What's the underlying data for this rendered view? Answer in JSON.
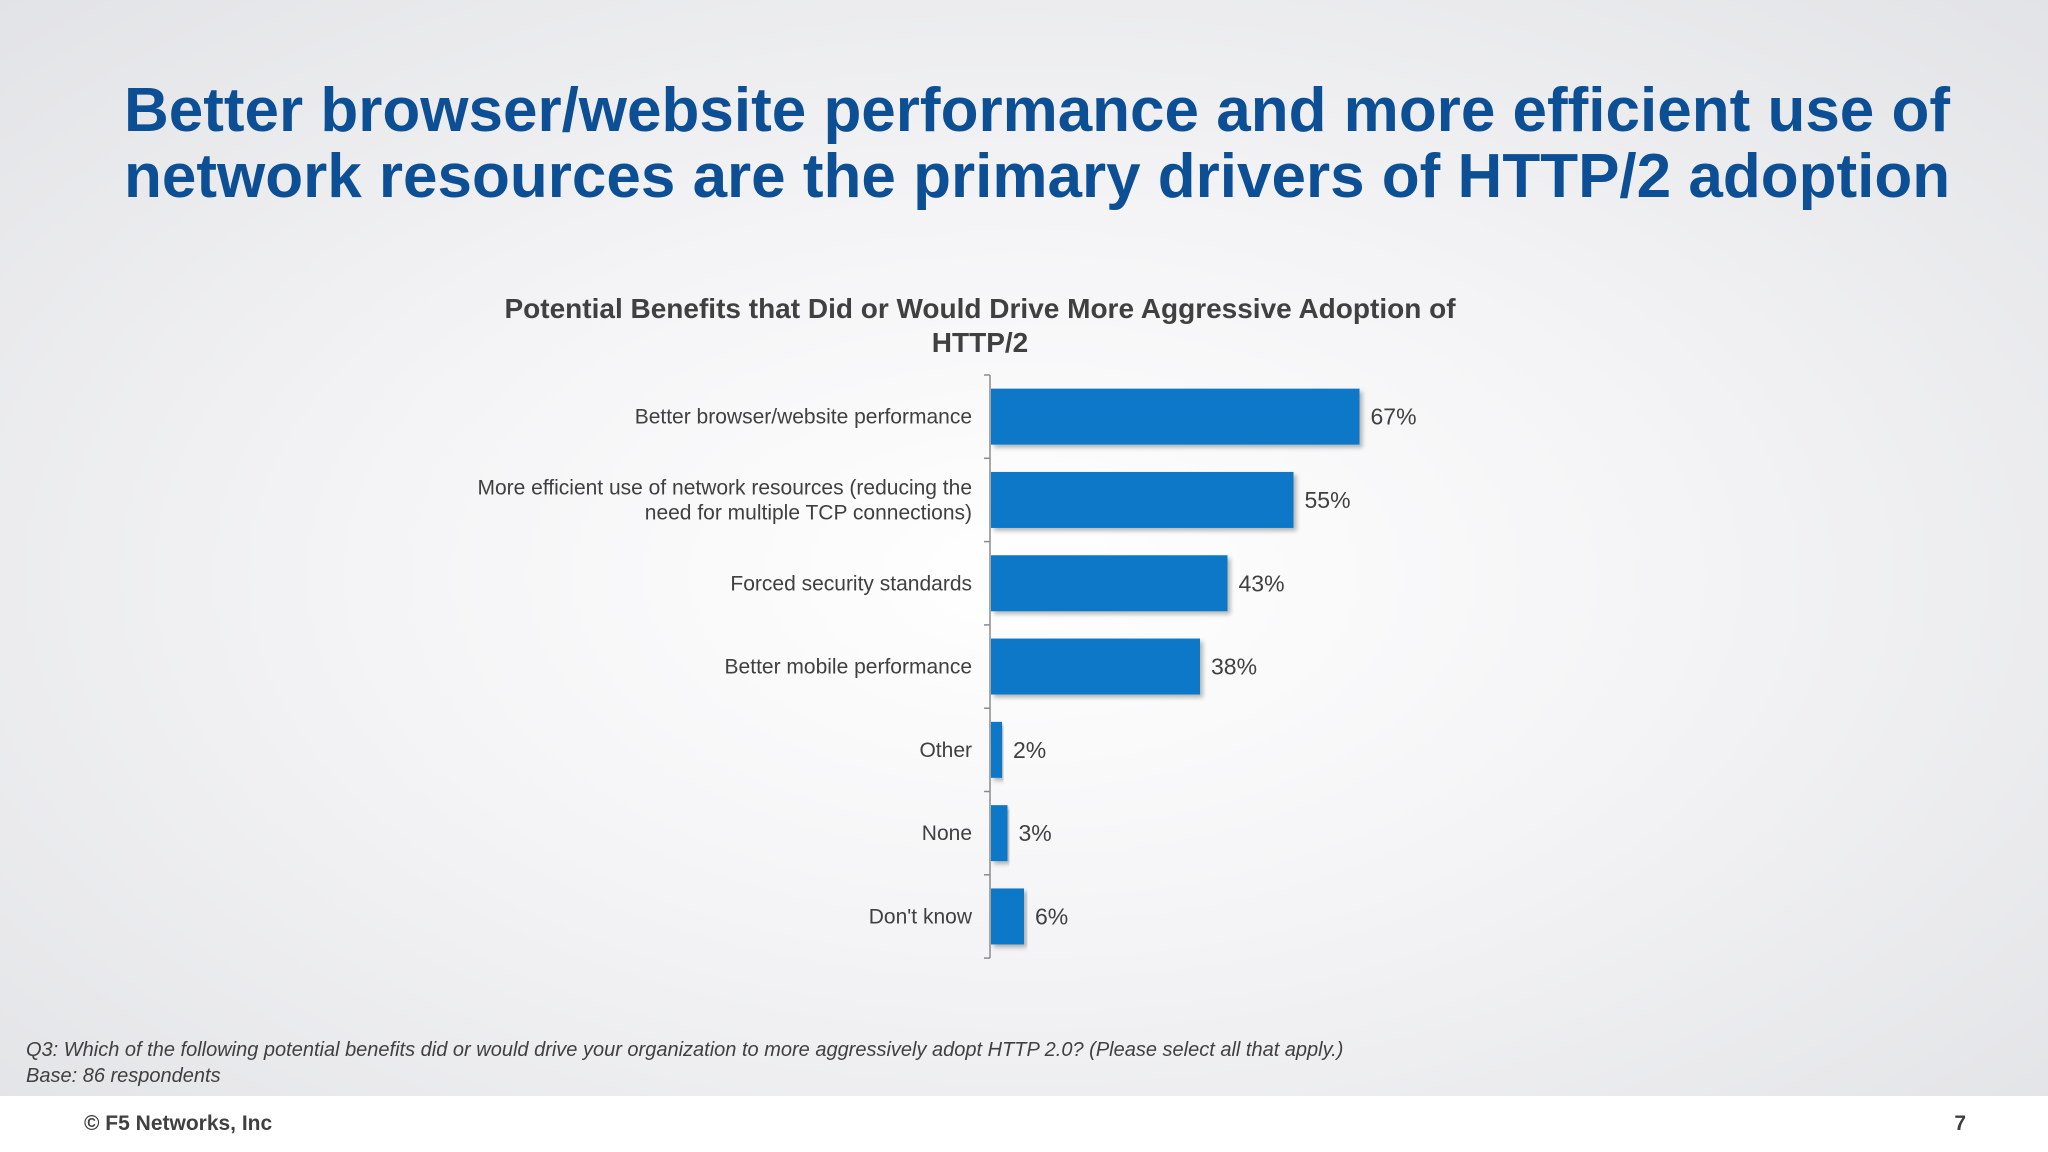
{
  "slide": {
    "title_line1": "Better browser/website performance and more efficient use of",
    "title_line2": "network resources are the primary drivers of HTTP/2 adoption"
  },
  "chart_data": {
    "type": "bar",
    "orientation": "horizontal",
    "title_line1": "Potential Benefits that Did or Would Drive More Aggressive Adoption of",
    "title_line2": "HTTP/2",
    "categories": [
      [
        "Better browser/website performance"
      ],
      [
        "More efficient use of network resources (reducing the",
        "need for multiple TCP connections)"
      ],
      [
        "Forced security standards"
      ],
      [
        "Better mobile performance"
      ],
      [
        "Other"
      ],
      [
        "None"
      ],
      [
        "Don't know"
      ]
    ],
    "values": [
      67,
      55,
      43,
      38,
      2,
      3,
      6
    ],
    "value_labels": [
      "67%",
      "55%",
      "43%",
      "38%",
      "2%",
      "3%",
      "6%"
    ],
    "unit": "%",
    "bar_color": "#0a78c8",
    "grid": false
  },
  "footnote": {
    "question": "Q3:  Which of the following potential benefits did or would drive your organization to more aggressively adopt HTTP 2.0?  (Please select all that apply.)",
    "base": "Base: 86 respondents"
  },
  "footer": {
    "copyright": "© F5 Networks, Inc",
    "page_number": "7"
  }
}
